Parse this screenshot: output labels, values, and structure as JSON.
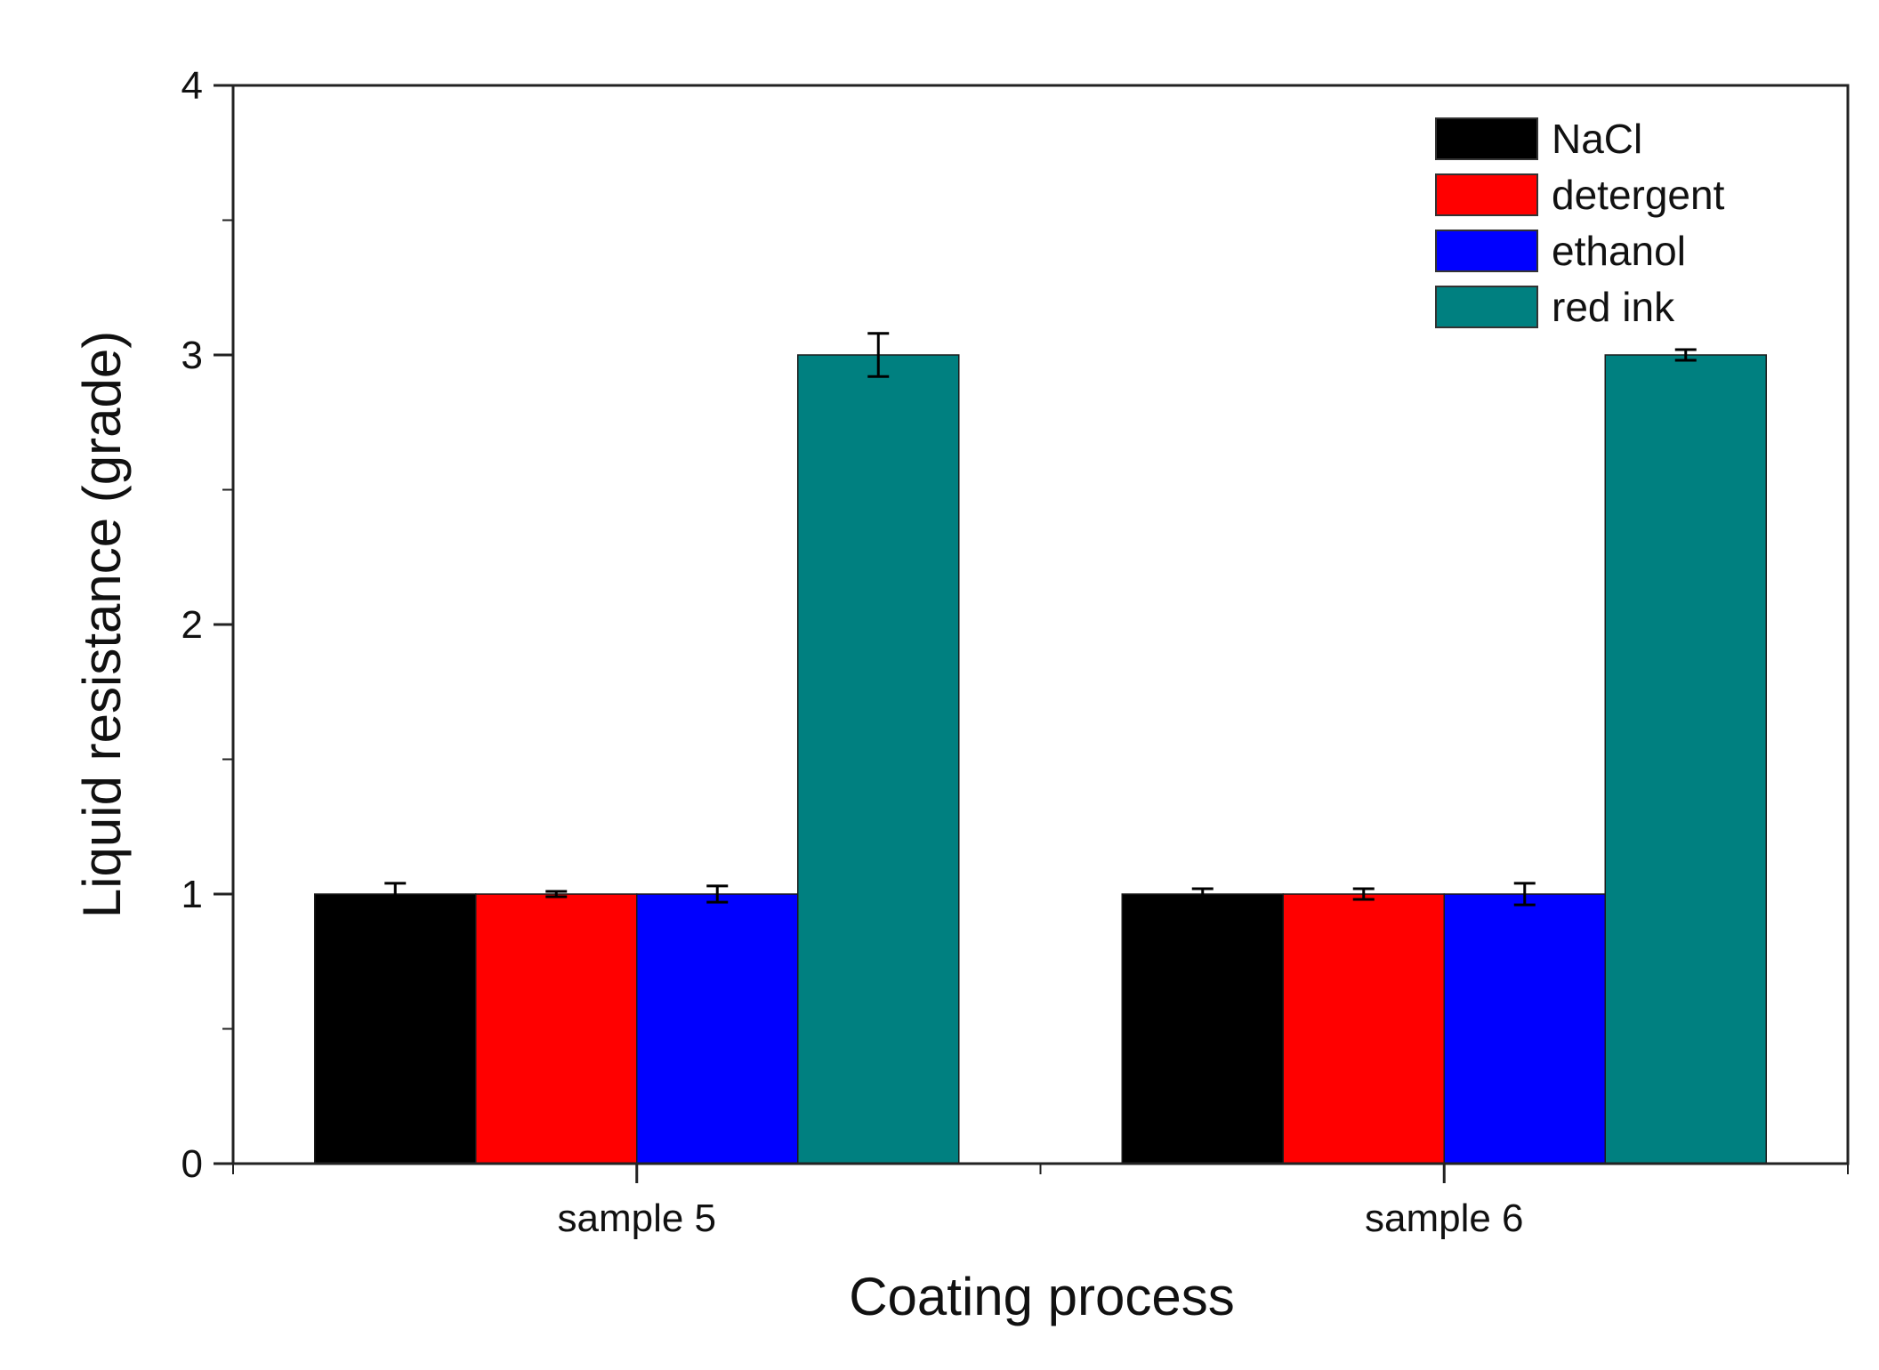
{
  "chart_data": {
    "type": "bar",
    "categories": [
      "sample 5",
      "sample 6"
    ],
    "series": [
      {
        "name": "NaCl",
        "color": "#000000",
        "values": [
          1,
          1
        ],
        "errors": [
          0.04,
          0.02
        ]
      },
      {
        "name": "detergent",
        "color": "#ff0000",
        "values": [
          1,
          1
        ],
        "errors": [
          0.01,
          0.02
        ]
      },
      {
        "name": "ethanol",
        "color": "#0000ff",
        "values": [
          1,
          1
        ],
        "errors": [
          0.03,
          0.04
        ]
      },
      {
        "name": "red ink",
        "color": "#008080",
        "values": [
          3,
          3
        ],
        "errors": [
          0.08,
          0.02
        ]
      }
    ],
    "xlabel": "Coating process",
    "ylabel": "Liquid resistance (grade)",
    "ylim": [
      0,
      4
    ],
    "yticks": [
      "0",
      "1",
      "2",
      "3",
      "4"
    ],
    "legend_position": "top-right",
    "grid": false
  }
}
